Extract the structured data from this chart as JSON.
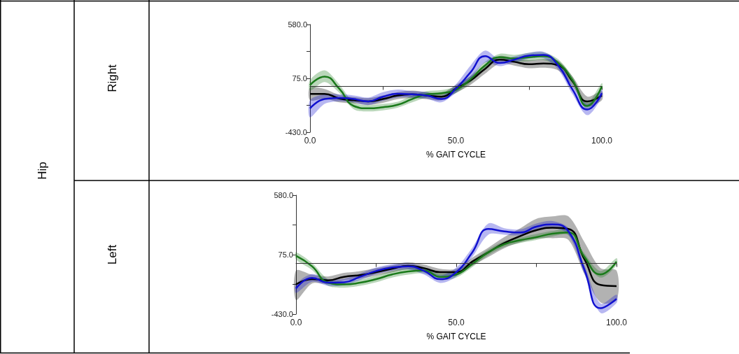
{
  "chart_data": [
    {
      "type": "line",
      "ylabel": "Right",
      "xlabel": "% GAIT CYCLE",
      "annotations": [
        "Hip"
      ],
      "grid": false,
      "marker": "none",
      "line_style": "solid",
      "x": [
        0,
        5,
        10,
        15,
        20,
        25,
        30,
        35,
        40,
        45,
        50,
        55,
        60,
        65,
        70,
        75,
        80,
        85,
        90,
        95,
        100
      ],
      "xlim": [
        0,
        100
      ],
      "xticks": [
        {
          "value": 0,
          "label": "0.0"
        },
        {
          "value": 25,
          "label": null
        },
        {
          "value": 50,
          "label": "50.0"
        },
        {
          "value": 75,
          "label": null
        },
        {
          "value": 100,
          "label": "100.0"
        }
      ],
      "ylim": [
        -430,
        580
      ],
      "yticks": [
        {
          "value": -430,
          "label": "-430.0"
        },
        {
          "value": -177.5,
          "label": null
        },
        {
          "value": 75,
          "label": "75.0"
        },
        {
          "value": 327.5,
          "label": null
        },
        {
          "value": 580,
          "label": "580.0"
        }
      ],
      "ref_lines": [
        {
          "axis": "y",
          "value": 0,
          "color": "#333333"
        }
      ],
      "series": [
        {
          "color": "#000000",
          "values": [
            -71,
            -71,
            -114,
            -130,
            -141,
            -119,
            -86,
            -75,
            -86,
            -97,
            -21,
            55,
            164,
            251,
            230,
            208,
            214,
            197,
            45,
            -141,
            -86
          ],
          "lower": [
            -130,
            -115,
            -150,
            -160,
            -175,
            -155,
            -120,
            -110,
            -120,
            -130,
            -60,
            15,
            120,
            215,
            195,
            170,
            175,
            150,
            0,
            -185,
            -130
          ],
          "upper": [
            -10,
            -25,
            -80,
            -100,
            -110,
            -85,
            -55,
            -40,
            -55,
            -65,
            15,
            95,
            205,
            285,
            265,
            245,
            255,
            240,
            90,
            -95,
            -45
          ]
        },
        {
          "color": "#1a7a1a",
          "values": [
            12,
            92,
            -21,
            -184,
            -206,
            -195,
            -173,
            -119,
            -75,
            -64,
            -32,
            66,
            197,
            273,
            262,
            273,
            284,
            219,
            55,
            -184,
            1
          ],
          "lower": [
            -40,
            40,
            -60,
            -215,
            -235,
            -225,
            -200,
            -150,
            -105,
            -95,
            -65,
            35,
            165,
            245,
            230,
            235,
            245,
            185,
            20,
            -215,
            -30
          ],
          "upper": [
            60,
            150,
            20,
            -150,
            -175,
            -165,
            -145,
            -85,
            -45,
            -35,
            0,
            100,
            230,
            305,
            295,
            315,
            320,
            255,
            90,
            -150,
            30
          ]
        },
        {
          "color": "#1010d0",
          "values": [
            -206,
            -119,
            -108,
            -119,
            -141,
            -97,
            -69,
            -75,
            -86,
            -119,
            -21,
            132,
            284,
            219,
            251,
            288,
            295,
            197,
            -32,
            -217,
            -64
          ],
          "lower": [
            -290,
            -165,
            -140,
            -150,
            -175,
            -135,
            -105,
            -105,
            -115,
            -150,
            -60,
            70,
            225,
            190,
            225,
            260,
            265,
            160,
            -75,
            -270,
            -100
          ],
          "upper": [
            -130,
            -75,
            -75,
            -85,
            -105,
            -55,
            -30,
            -45,
            -55,
            -90,
            20,
            195,
            335,
            250,
            280,
            315,
            325,
            235,
            10,
            -165,
            -30
          ]
        }
      ]
    },
    {
      "type": "line",
      "ylabel": "Left",
      "xlabel": "% GAIT CYCLE",
      "grid": false,
      "marker": "none",
      "line_style": "solid",
      "x": [
        0,
        5,
        10,
        15,
        20,
        25,
        30,
        35,
        40,
        45,
        50,
        55,
        60,
        65,
        70,
        75,
        80,
        85,
        90,
        95,
        100
      ],
      "xlim": [
        0,
        100
      ],
      "xticks": [
        {
          "value": 0,
          "label": "0.0"
        },
        {
          "value": 25,
          "label": null
        },
        {
          "value": 50,
          "label": "50.0"
        },
        {
          "value": 75,
          "label": null
        },
        {
          "value": 100,
          "label": "100.0"
        }
      ],
      "ylim": [
        -430,
        580
      ],
      "yticks": [
        {
          "value": -430,
          "label": "-430.0"
        },
        {
          "value": -177.5,
          "label": null
        },
        {
          "value": 75,
          "label": "75.0"
        },
        {
          "value": 327.5,
          "label": null
        },
        {
          "value": 580,
          "label": "580.0"
        }
      ],
      "ref_lines": [
        {
          "axis": "y",
          "value": 0,
          "color": "#333333"
        }
      ],
      "series": [
        {
          "color": "#000000",
          "values": [
            -178,
            -133,
            -143,
            -113,
            -99,
            -74,
            -44,
            -20,
            -40,
            -74,
            -74,
            16,
            95,
            174,
            233,
            283,
            303,
            293,
            35,
            -182,
            -192
          ],
          "lower": [
            -310,
            -170,
            -175,
            -145,
            -130,
            -105,
            -75,
            -50,
            -70,
            -105,
            -105,
            -20,
            55,
            130,
            180,
            210,
            215,
            200,
            -90,
            -330,
            -310
          ],
          "upper": [
            -60,
            -95,
            -110,
            -80,
            -65,
            -40,
            -15,
            10,
            -10,
            -45,
            -45,
            50,
            135,
            225,
            300,
            380,
            400,
            400,
            180,
            -40,
            -60
          ]
        },
        {
          "color": "#1a7a1a",
          "values": [
            65,
            -24,
            -163,
            -178,
            -163,
            -133,
            -93,
            -68,
            -60,
            -113,
            -93,
            -4,
            95,
            164,
            198,
            224,
            253,
            263,
            55,
            -93,
            16
          ],
          "lower": [
            35,
            -55,
            -190,
            -205,
            -190,
            -160,
            -120,
            -95,
            -85,
            -140,
            -120,
            -30,
            70,
            140,
            175,
            200,
            230,
            240,
            25,
            -120,
            -15
          ],
          "upper": [
            95,
            5,
            -135,
            -150,
            -135,
            -105,
            -65,
            -40,
            -35,
            -85,
            -65,
            25,
            120,
            190,
            220,
            250,
            275,
            285,
            85,
            -65,
            45
          ]
        },
        {
          "color": "#1010d0",
          "values": [
            -212,
            -123,
            -163,
            -159,
            -113,
            -64,
            -34,
            -24,
            -64,
            -133,
            -74,
            95,
            293,
            273,
            263,
            313,
            332,
            273,
            -54,
            -380,
            -301
          ],
          "lower": [
            -250,
            -155,
            -190,
            -185,
            -140,
            -90,
            -60,
            -50,
            -95,
            -165,
            -110,
            55,
            245,
            245,
            240,
            290,
            305,
            245,
            -90,
            -420,
            -335
          ],
          "upper": [
            -175,
            -90,
            -135,
            -130,
            -85,
            -35,
            -5,
            5,
            -35,
            -100,
            -35,
            135,
            340,
            300,
            290,
            340,
            360,
            300,
            -15,
            -340,
            -265
          ]
        }
      ]
    }
  ]
}
